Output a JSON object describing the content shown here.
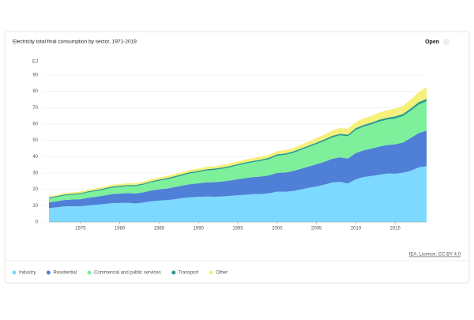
{
  "chart_data": {
    "type": "stacked_area",
    "title": "Electricity total final consumption by sector, 1971-2019",
    "button": "Open",
    "y_unit": "EJ",
    "source": "IEA. Licence: CC BY 4.0",
    "x": [
      1971,
      1972,
      1973,
      1974,
      1975,
      1976,
      1977,
      1978,
      1979,
      1980,
      1981,
      1982,
      1983,
      1984,
      1985,
      1986,
      1987,
      1988,
      1989,
      1990,
      1991,
      1992,
      1993,
      1994,
      1995,
      1996,
      1997,
      1998,
      1999,
      2000,
      2001,
      2002,
      2003,
      2004,
      2005,
      2006,
      2007,
      2008,
      2009,
      2010,
      2011,
      2012,
      2013,
      2014,
      2015,
      2016,
      2017,
      2018,
      2019
    ],
    "xlim": [
      1971,
      2019
    ],
    "xticks": [
      1975,
      1980,
      1985,
      1990,
      1995,
      2000,
      2005,
      2010,
      2015
    ],
    "ylim": [
      0,
      90
    ],
    "yticks": [
      0,
      10,
      20,
      30,
      40,
      50,
      60,
      70,
      80,
      90
    ],
    "grid": true,
    "legend": "bottom-left",
    "series": [
      {
        "name": "Industry",
        "color": "#7dd9ff",
        "values": [
          8.5,
          9.0,
          9.6,
          9.7,
          9.6,
          10.2,
          10.6,
          11.0,
          11.6,
          11.7,
          11.8,
          11.4,
          11.9,
          12.7,
          13.1,
          13.4,
          14.0,
          14.7,
          15.2,
          15.4,
          15.6,
          15.5,
          15.6,
          16.0,
          16.4,
          16.7,
          17.1,
          17.2,
          17.6,
          18.6,
          18.5,
          19.0,
          19.9,
          20.9,
          21.8,
          22.9,
          24.2,
          24.6,
          23.6,
          26.2,
          27.6,
          28.2,
          29.0,
          29.7,
          29.6,
          30.2,
          31.4,
          33.5,
          34.2
        ]
      },
      {
        "name": "Residential",
        "color": "#4f7fd6",
        "values": [
          3.5,
          3.7,
          3.9,
          4.1,
          4.4,
          4.7,
          4.9,
          5.2,
          5.5,
          5.7,
          5.9,
          6.1,
          6.3,
          6.6,
          6.9,
          7.1,
          7.4,
          7.7,
          8.0,
          8.3,
          8.7,
          8.9,
          9.2,
          9.4,
          9.8,
          10.2,
          10.4,
          10.7,
          11.0,
          11.5,
          11.8,
          12.2,
          12.7,
          13.1,
          13.6,
          14.0,
          14.5,
          15.0,
          15.3,
          16.0,
          16.3,
          16.8,
          17.3,
          17.5,
          18.0,
          18.5,
          20.2,
          21.0,
          21.8
        ]
      },
      {
        "name": "Commercial and public services",
        "color": "#7ef09c",
        "values": [
          2.4,
          2.6,
          2.8,
          2.9,
          3.1,
          3.3,
          3.5,
          3.7,
          3.9,
          4.1,
          4.3,
          4.5,
          4.7,
          5.0,
          5.3,
          5.6,
          5.9,
          6.2,
          6.6,
          6.9,
          7.2,
          7.5,
          7.8,
          8.1,
          8.5,
          8.9,
          9.2,
          9.6,
          10.0,
          10.5,
          10.8,
          11.1,
          11.5,
          11.9,
          12.3,
          12.7,
          13.1,
          13.5,
          13.6,
          14.2,
          14.5,
          14.8,
          15.2,
          15.5,
          15.8,
          16.2,
          16.6,
          17.4,
          18.0
        ]
      },
      {
        "name": "Transport",
        "color": "#2a9d8f",
        "values": [
          0.6,
          0.6,
          0.6,
          0.6,
          0.6,
          0.6,
          0.6,
          0.7,
          0.7,
          0.7,
          0.7,
          0.7,
          0.7,
          0.7,
          0.7,
          0.8,
          0.8,
          0.8,
          0.8,
          0.8,
          0.8,
          0.8,
          0.8,
          0.8,
          0.8,
          0.8,
          0.8,
          0.8,
          0.9,
          0.9,
          0.9,
          0.9,
          0.9,
          0.9,
          0.9,
          1.0,
          1.0,
          1.0,
          1.0,
          1.1,
          1.1,
          1.1,
          1.2,
          1.2,
          1.3,
          1.3,
          1.4,
          1.5,
          1.5
        ]
      },
      {
        "name": "Other",
        "color": "#f5f07a",
        "values": [
          0.8,
          0.8,
          0.9,
          0.9,
          0.9,
          1.0,
          1.0,
          1.0,
          1.1,
          1.1,
          1.1,
          1.1,
          1.2,
          1.2,
          1.2,
          1.3,
          1.3,
          1.3,
          1.4,
          1.4,
          1.5,
          1.5,
          1.5,
          1.6,
          1.6,
          1.7,
          1.7,
          1.8,
          1.8,
          1.9,
          2.0,
          2.1,
          2.3,
          2.5,
          2.8,
          3.0,
          3.2,
          3.5,
          3.6,
          3.8,
          4.0,
          4.2,
          4.4,
          4.6,
          4.8,
          5.0,
          5.5,
          6.2,
          7.0
        ]
      }
    ]
  }
}
